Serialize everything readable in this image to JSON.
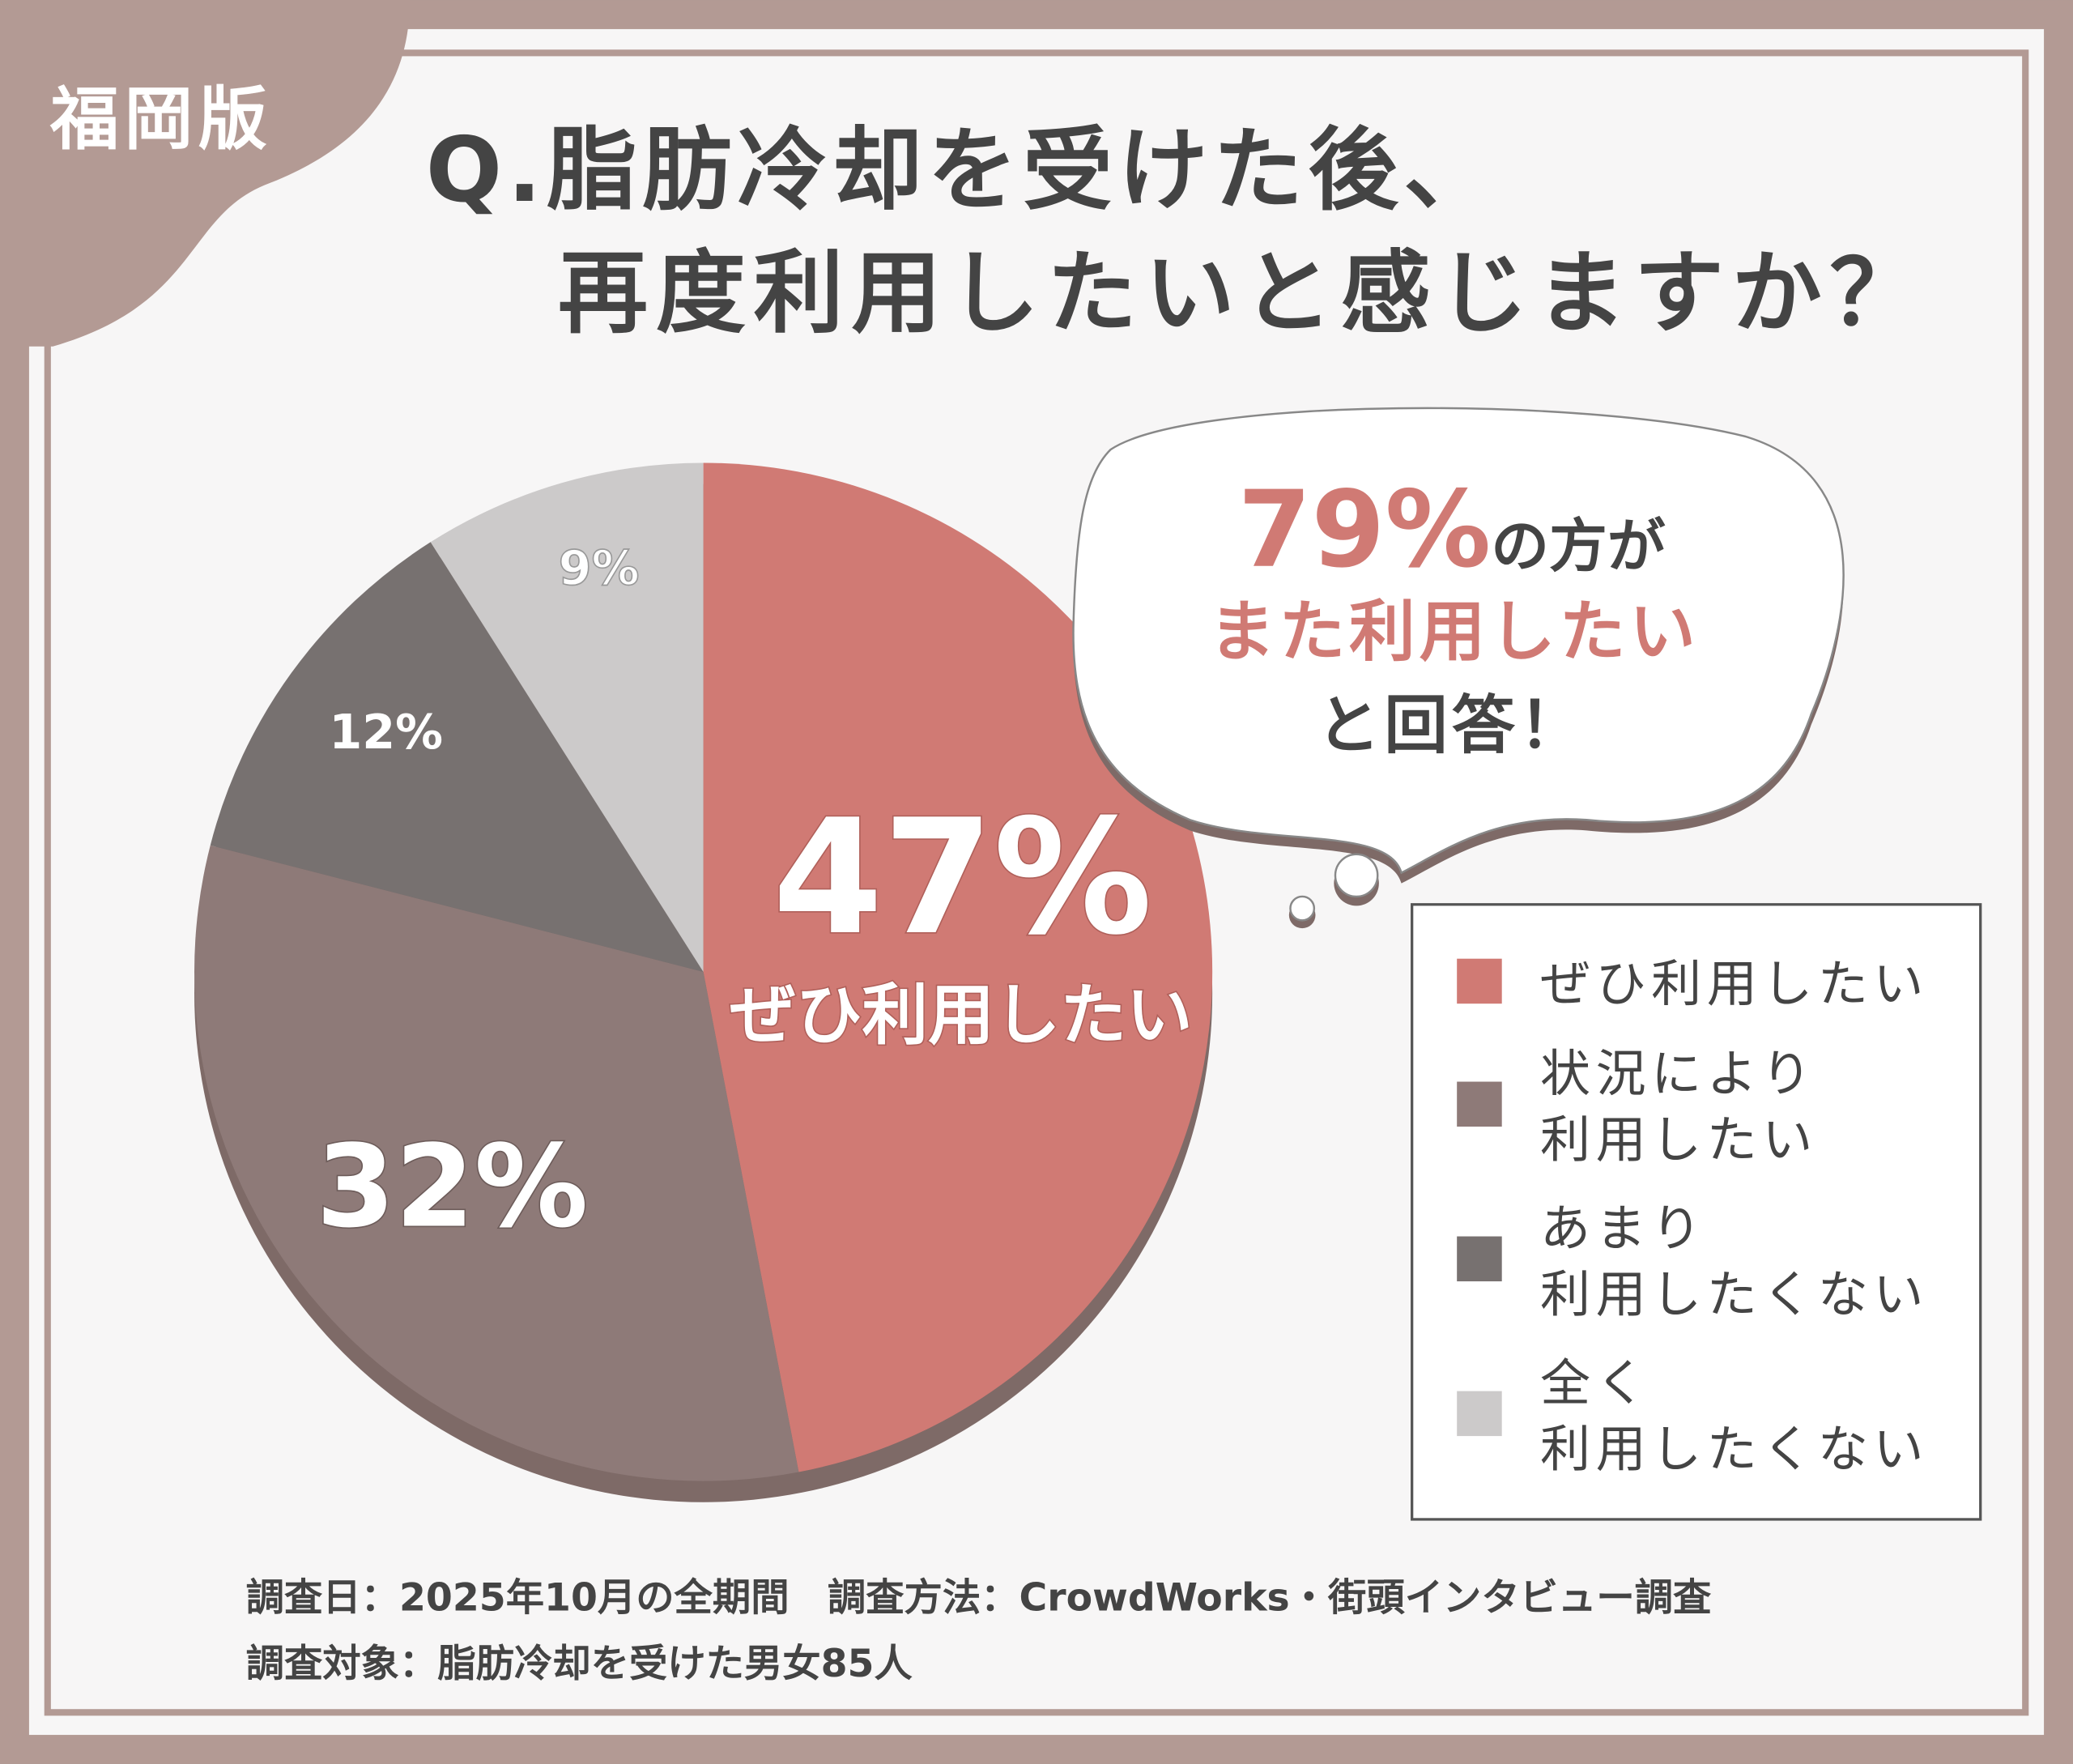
{
  "badge": "福岡版",
  "title": {
    "line1": "Q.脂肪冷却を受けた後、",
    "line2": "再度利用したいと感じますか？"
  },
  "callout": {
    "percent": "79%",
    "line1_suffix": "の方が",
    "line2": "また利用したい",
    "line3": "と回答！"
  },
  "colors": {
    "frame": "#b39a94",
    "accent": "#d07a74",
    "text": "#444444"
  },
  "chart_data": {
    "type": "pie",
    "start": "top",
    "direction": "clockwise",
    "categories": [
      "ぜひ利用したい",
      "状況により利用したい",
      "あまり利用したくない",
      "全く利用したくない"
    ],
    "values": [
      47,
      32,
      12,
      9
    ],
    "data_labels": [
      "47%",
      "32%",
      "12%",
      "9%"
    ],
    "slice_inner_label": "ぜひ利用したい",
    "colors": [
      "#d07a74",
      "#8e7a78",
      "#777170",
      "#cccaca"
    ],
    "legend": {
      "placement": "right",
      "entries": [
        {
          "lines": [
            "ぜひ利用したい"
          ]
        },
        {
          "lines": [
            "状況により",
            "利用したい"
          ]
        },
        {
          "lines": [
            "あまり",
            "利用したくない"
          ]
        },
        {
          "lines": [
            "全く",
            "利用したくない"
          ]
        }
      ]
    }
  },
  "footer": {
    "line1": "調査日：2025年10月の全期間　調査方法：CrowdWorks・街頭インタビュー調査",
    "line2": "調査対象：脂肪冷却を受けた男女85人"
  }
}
